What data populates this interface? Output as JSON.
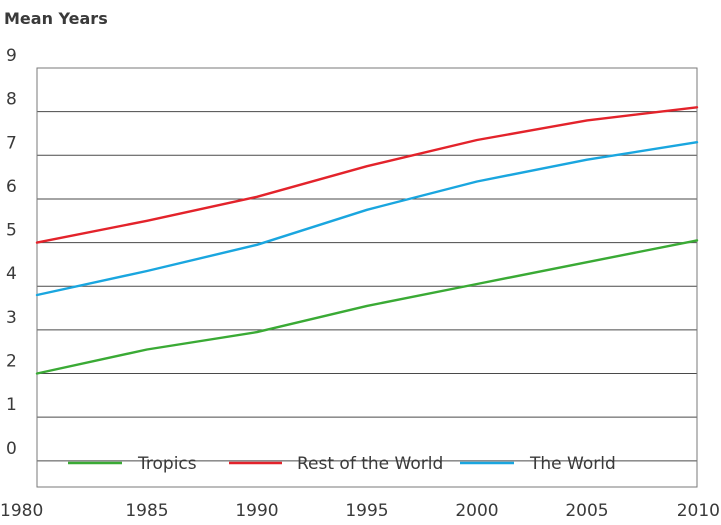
{
  "chart_data": {
    "type": "line",
    "title": "",
    "ylabel": "Mean Years",
    "xlabel": "",
    "x": [
      1980,
      1985,
      1990,
      1995,
      2000,
      2005,
      2010
    ],
    "xlim": [
      1980,
      2010
    ],
    "ylim": [
      -0.6,
      9
    ],
    "yticks": [
      0,
      1,
      2,
      3,
      4,
      5,
      6,
      7,
      8,
      9
    ],
    "grid": true,
    "legend_position": "bottom",
    "series": [
      {
        "name": "Tropics",
        "color": "#3aaa35",
        "values": [
          2.0,
          2.55,
          2.95,
          3.55,
          4.05,
          4.55,
          5.05
        ]
      },
      {
        "name": "Rest of the World",
        "color": "#e3232b",
        "values": [
          5.0,
          5.5,
          6.05,
          6.75,
          7.35,
          7.8,
          8.1
        ]
      },
      {
        "name": "The World",
        "color": "#1aa6df",
        "values": [
          3.8,
          4.35,
          4.95,
          5.75,
          6.4,
          6.9,
          7.3
        ]
      }
    ]
  }
}
